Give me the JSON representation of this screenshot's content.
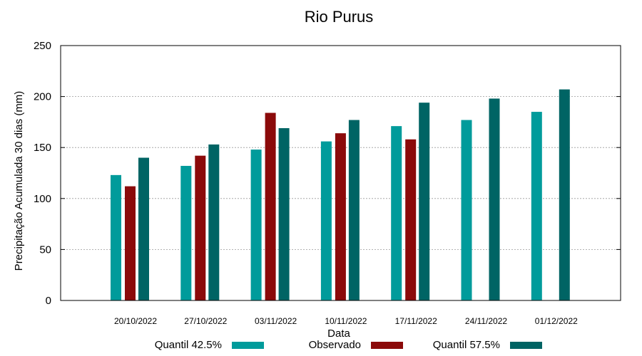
{
  "chart_data": {
    "type": "bar",
    "title": "Rio Purus",
    "xlabel": "Data",
    "ylabel": "Precipitação Acumulada 30 dias (mm)",
    "ylim": [
      0,
      250
    ],
    "yticks": [
      0,
      50,
      100,
      150,
      200,
      250
    ],
    "grid": true,
    "legend_position": "bottom",
    "categories": [
      "20/10/2022",
      "27/10/2022",
      "03/11/2022",
      "10/11/2022",
      "17/11/2022",
      "24/11/2022",
      "01/12/2022"
    ],
    "series": [
      {
        "name": "Quantil 42.5%",
        "color": "#009b9b",
        "values": [
          123,
          132,
          148,
          156,
          171,
          177,
          185
        ]
      },
      {
        "name": "Observado",
        "color": "#8b0a0a",
        "values": [
          112,
          142,
          184,
          164,
          158,
          null,
          null
        ]
      },
      {
        "name": "Quantil 57.5%",
        "color": "#006464",
        "values": [
          140,
          153,
          169,
          177,
          194,
          198,
          207
        ]
      }
    ]
  }
}
